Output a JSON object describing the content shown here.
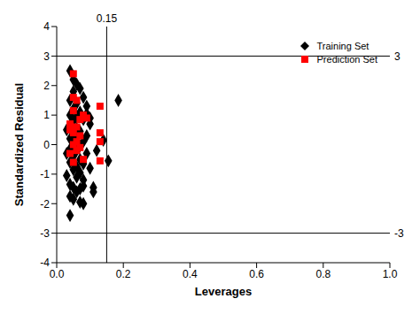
{
  "chart_data": {
    "type": "scatter",
    "x_label": "Leverages",
    "y_label": "Standardized Residual",
    "xlim": [
      0,
      1
    ],
    "xticks": [
      {
        "value": 0,
        "label": "0.0"
      },
      0.2,
      0.4,
      0.6,
      0.8,
      {
        "value": 1,
        "label": "1.0"
      }
    ],
    "ylim": [
      -4,
      4
    ],
    "yticks": [
      -4,
      -3,
      -2,
      -1,
      0,
      1,
      2,
      3,
      4
    ],
    "grid": false,
    "legend": "upper right",
    "reference_lines": [
      {
        "axis": "x",
        "value": 0.15,
        "label": "0.15"
      },
      {
        "axis": "y",
        "value": 3,
        "label": "3"
      },
      {
        "axis": "y",
        "value": -3,
        "label": "-3"
      }
    ],
    "series": [
      {
        "name": "Training Set",
        "color": "#000000",
        "marker": "diamond",
        "x": [
          0.04,
          0.05,
          0.06,
          0.07,
          0.05,
          0.08,
          0.04,
          0.06,
          0.09,
          0.05,
          0.07,
          0.04,
          0.06,
          0.08,
          0.05,
          0.1,
          0.04,
          0.06,
          0.07,
          0.05,
          0.09,
          0.04,
          0.06,
          0.08,
          0.05,
          0.07,
          0.04,
          0.06,
          0.09,
          0.05,
          0.07,
          0.04,
          0.08,
          0.06,
          0.05,
          0.07,
          0.03,
          0.06,
          0.08,
          0.04,
          0.05,
          0.07,
          0.06,
          0.04,
          0.05,
          0.07,
          0.08,
          0.04,
          0.11,
          0.11,
          0.12,
          0.14,
          0.155,
          0.185,
          0.1,
          0.1,
          0.03,
          0.03,
          0.09,
          0.08
        ],
        "values": [
          2.5,
          2.2,
          2.05,
          1.9,
          1.8,
          1.6,
          1.5,
          1.4,
          1.3,
          1.2,
          1.1,
          1.0,
          0.95,
          0.85,
          0.8,
          0.7,
          0.6,
          0.55,
          0.45,
          0.35,
          0.3,
          0.2,
          0.15,
          0.1,
          0.0,
          -0.05,
          -0.15,
          -0.2,
          -0.3,
          -0.4,
          -0.5,
          -0.6,
          -0.65,
          -0.75,
          -0.85,
          -0.95,
          -1.05,
          -1.1,
          -1.2,
          -1.35,
          -1.45,
          -1.5,
          -1.6,
          -1.75,
          -1.85,
          -1.95,
          -2.0,
          -2.4,
          -1.45,
          -1.6,
          -0.2,
          0.15,
          -0.55,
          1.5,
          0.9,
          -0.8,
          0.5,
          -0.3,
          1.05,
          -1.4
        ]
      },
      {
        "name": "Prediction Set",
        "color": "#ff0000",
        "marker": "square",
        "x": [
          0.05,
          0.05,
          0.06,
          0.08,
          0.09,
          0.13,
          0.04,
          0.06,
          0.05,
          0.07,
          0.13,
          0.13,
          0.06,
          0.05,
          0.07,
          0.04,
          0.08,
          0.13,
          0.05,
          0.06,
          0.04,
          0.07,
          0.05
        ],
        "values": [
          2.4,
          1.6,
          1.5,
          1.0,
          0.9,
          1.3,
          0.7,
          0.6,
          0.4,
          0.3,
          0.4,
          0.1,
          0.1,
          0.0,
          -0.1,
          -0.3,
          -0.5,
          -0.55,
          -0.6,
          -0.2,
          0.5,
          0.85,
          1.15
        ]
      }
    ]
  }
}
